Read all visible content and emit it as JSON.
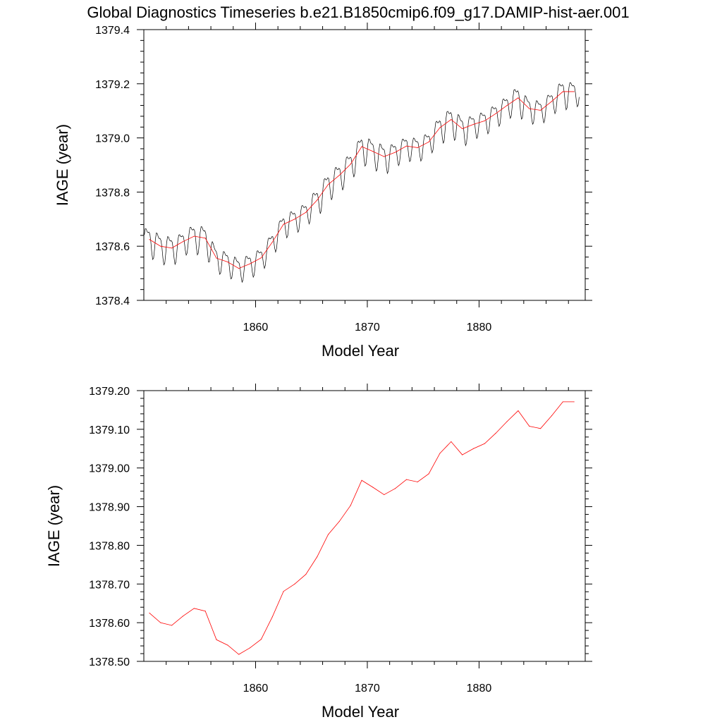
{
  "title": "Global Diagnostics Timeseries b.e21.B1850cmip6.f09_g17.DAMIP-hist-aer.001",
  "chart_data": [
    {
      "type": "line",
      "xlabel": "Model Year",
      "ylabel": "IAGE (year)",
      "xlim": [
        1850,
        1889.5
      ],
      "ylim": [
        1378.4,
        1379.4
      ],
      "x_ticks": [
        1860,
        1870,
        1880
      ],
      "x_tick_labels": [
        "1860",
        "1870",
        "1880"
      ],
      "y_ticks": [
        1378.4,
        1378.6,
        1378.8,
        1379.0,
        1379.2,
        1379.4
      ],
      "y_tick_labels": [
        "1378.4",
        "1378.6",
        "1378.8",
        "1379.0",
        "1379.2",
        "1379.4"
      ],
      "grid": false,
      "series": [
        {
          "color": "#000000",
          "line_width": 0.7,
          "seasonal": true,
          "x": [
            1850.5,
            1851.5,
            1852.5,
            1853.5,
            1854.5,
            1855.5,
            1856.5,
            1857.5,
            1858.5,
            1859.5,
            1860.5,
            1861.5,
            1862.5,
            1863.5,
            1864.5,
            1865.5,
            1866.5,
            1867.5,
            1868.5,
            1869.5,
            1870.5,
            1871.5,
            1872.5,
            1873.5,
            1874.5,
            1875.5,
            1876.5,
            1877.5,
            1878.5,
            1879.5,
            1880.5,
            1881.5,
            1882.5,
            1883.5,
            1884.5,
            1885.5,
            1886.5,
            1887.5,
            1888.5
          ],
          "y": [
            1378.625,
            1378.6,
            1378.593,
            1378.617,
            1378.637,
            1378.63,
            1378.556,
            1378.542,
            1378.518,
            1378.535,
            1378.557,
            1378.615,
            1378.681,
            1378.7,
            1378.725,
            1378.77,
            1378.828,
            1378.862,
            1378.903,
            1378.968,
            1378.95,
            1378.931,
            1378.947,
            1378.97,
            1378.964,
            1378.985,
            1379.038,
            1379.068,
            1379.034,
            1379.05,
            1379.063,
            1379.09,
            1379.12,
            1379.148,
            1379.108,
            1379.102,
            1379.135,
            1379.171,
            1379.171
          ],
          "amplitude": [
            0.06,
            0.06,
            0.06,
            0.05,
            0.06,
            0.06,
            0.05,
            0.05,
            0.05,
            0.05,
            0.05,
            0.05,
            0.05,
            0.05,
            0.05,
            0.06,
            0.06,
            0.06,
            0.06,
            0.06,
            0.06,
            0.06,
            0.05,
            0.05,
            0.05,
            0.05,
            0.06,
            0.06,
            0.06,
            0.05,
            0.05,
            0.05,
            0.05,
            0.06,
            0.05,
            0.05,
            0.05,
            0.06,
            0.05
          ]
        },
        {
          "color": "#ff0000",
          "line_width": 0.8,
          "x": [
            1850.5,
            1851.5,
            1852.5,
            1853.5,
            1854.5,
            1855.5,
            1856.5,
            1857.5,
            1858.5,
            1859.5,
            1860.5,
            1861.5,
            1862.5,
            1863.5,
            1864.5,
            1865.5,
            1866.5,
            1867.5,
            1868.5,
            1869.5,
            1870.5,
            1871.5,
            1872.5,
            1873.5,
            1874.5,
            1875.5,
            1876.5,
            1877.5,
            1878.5,
            1879.5,
            1880.5,
            1881.5,
            1882.5,
            1883.5,
            1884.5,
            1885.5,
            1886.5,
            1887.5,
            1888.5
          ],
          "y": [
            1378.625,
            1378.6,
            1378.593,
            1378.617,
            1378.637,
            1378.63,
            1378.556,
            1378.542,
            1378.518,
            1378.535,
            1378.557,
            1378.615,
            1378.681,
            1378.7,
            1378.725,
            1378.77,
            1378.828,
            1378.862,
            1378.903,
            1378.968,
            1378.95,
            1378.931,
            1378.947,
            1378.97,
            1378.964,
            1378.985,
            1379.038,
            1379.068,
            1379.034,
            1379.05,
            1379.063,
            1379.09,
            1379.12,
            1379.148,
            1379.108,
            1379.102,
            1379.135,
            1379.171,
            1379.171
          ]
        }
      ]
    },
    {
      "type": "line",
      "xlabel": "Model Year",
      "ylabel": "IAGE (year)",
      "xlim": [
        1850,
        1889.5
      ],
      "ylim": [
        1378.5,
        1379.2
      ],
      "x_ticks": [
        1860,
        1870,
        1880
      ],
      "x_tick_labels": [
        "1860",
        "1870",
        "1880"
      ],
      "y_ticks": [
        1378.5,
        1378.6,
        1378.7,
        1378.8,
        1378.9,
        1379.0,
        1379.1,
        1379.2
      ],
      "y_tick_labels": [
        "1378.50",
        "1378.60",
        "1378.70",
        "1378.80",
        "1378.90",
        "1379.00",
        "1379.10",
        "1379.20"
      ],
      "grid": false,
      "series": [
        {
          "color": "#ff0000",
          "line_width": 0.8,
          "x": [
            1850.5,
            1851.5,
            1852.5,
            1853.5,
            1854.5,
            1855.5,
            1856.5,
            1857.5,
            1858.5,
            1859.5,
            1860.5,
            1861.5,
            1862.5,
            1863.5,
            1864.5,
            1865.5,
            1866.5,
            1867.5,
            1868.5,
            1869.5,
            1870.5,
            1871.5,
            1872.5,
            1873.5,
            1874.5,
            1875.5,
            1876.5,
            1877.5,
            1878.5,
            1879.5,
            1880.5,
            1881.5,
            1882.5,
            1883.5,
            1884.5,
            1885.5,
            1886.5,
            1887.5,
            1888.5
          ],
          "y": [
            1378.625,
            1378.6,
            1378.593,
            1378.617,
            1378.637,
            1378.63,
            1378.556,
            1378.542,
            1378.518,
            1378.535,
            1378.557,
            1378.615,
            1378.681,
            1378.7,
            1378.725,
            1378.77,
            1378.828,
            1378.862,
            1378.903,
            1378.968,
            1378.95,
            1378.931,
            1378.947,
            1378.97,
            1378.964,
            1378.985,
            1379.038,
            1379.068,
            1379.034,
            1379.05,
            1379.063,
            1379.09,
            1379.12,
            1379.148,
            1379.108,
            1379.102,
            1379.135,
            1379.171,
            1379.171
          ]
        }
      ]
    }
  ]
}
